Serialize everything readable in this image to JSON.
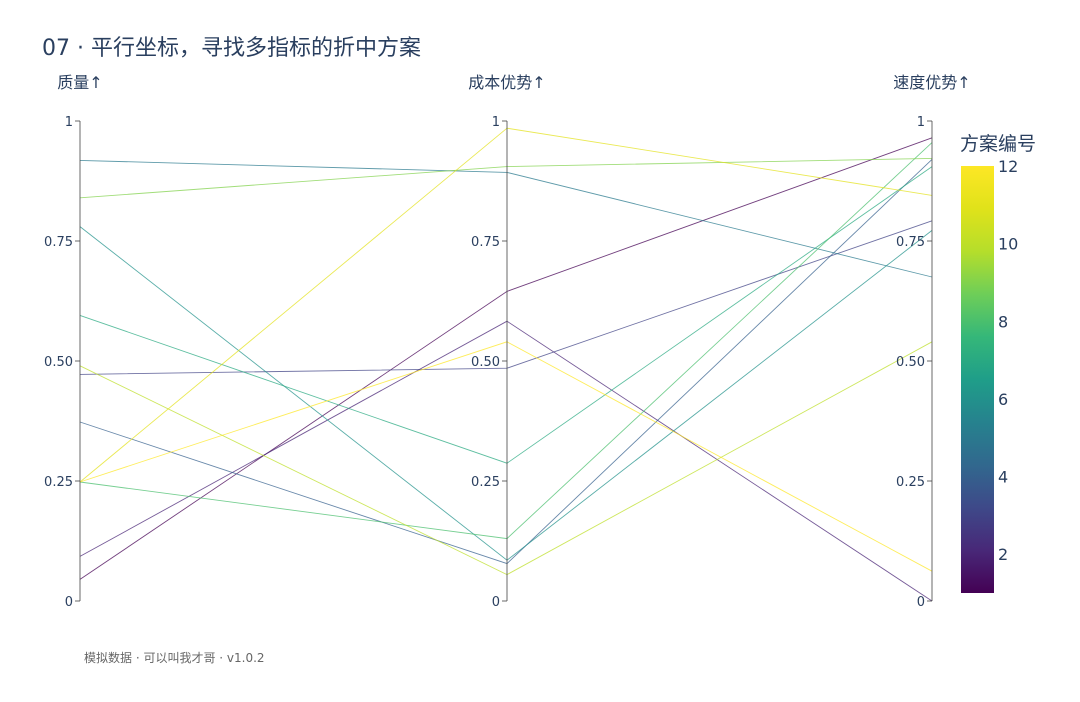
{
  "title": "07 · 平行坐标，寻找多指标的折中方案",
  "footer": "模拟数据 · 可以叫我才哥 · v1.0.2",
  "colorbar": {
    "title": "方案编号",
    "min": 1,
    "max": 12,
    "ticks": [
      "2",
      "4",
      "6",
      "8",
      "10",
      "12"
    ],
    "colorscale": "viridis"
  },
  "chart_data": {
    "type": "parallel_coordinates",
    "dimensions": [
      {
        "label": "质量↑",
        "range": [
          0,
          1
        ],
        "ticks": [
          "0",
          "0.25",
          "0.50",
          "0.75",
          "1"
        ]
      },
      {
        "label": "成本优势↑",
        "range": [
          0,
          1
        ],
        "ticks": [
          "0",
          "0.25",
          "0.50",
          "0.75",
          "1"
        ]
      },
      {
        "label": "速度优势↑",
        "range": [
          0,
          1
        ],
        "ticks": [
          "0",
          "0.25",
          "0.50",
          "0.75",
          "1"
        ]
      }
    ],
    "color_dimension": "方案编号",
    "rows": [
      {
        "id": 1,
        "values": [
          0.045,
          0.645,
          0.965
        ]
      },
      {
        "id": 2,
        "values": [
          0.093,
          0.583,
          0.0
        ]
      },
      {
        "id": 3,
        "values": [
          0.472,
          0.485,
          0.792
        ]
      },
      {
        "id": 4,
        "values": [
          0.373,
          0.078,
          0.92
        ]
      },
      {
        "id": 5,
        "values": [
          0.918,
          0.893,
          0.675
        ]
      },
      {
        "id": 6,
        "values": [
          0.78,
          0.085,
          0.772
        ]
      },
      {
        "id": 7,
        "values": [
          0.595,
          0.287,
          0.905
        ]
      },
      {
        "id": 8,
        "values": [
          0.248,
          0.13,
          0.955
        ]
      },
      {
        "id": 9,
        "values": [
          0.84,
          0.905,
          0.922
        ]
      },
      {
        "id": 10,
        "values": [
          0.49,
          0.055,
          0.54
        ]
      },
      {
        "id": 11,
        "values": [
          0.248,
          0.985,
          0.845
        ]
      },
      {
        "id": 12,
        "values": [
          0.248,
          0.54,
          0.062
        ]
      }
    ]
  }
}
